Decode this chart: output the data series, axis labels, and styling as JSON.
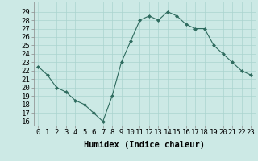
{
  "x": [
    0,
    1,
    2,
    3,
    4,
    5,
    6,
    7,
    8,
    9,
    10,
    11,
    12,
    13,
    14,
    15,
    16,
    17,
    18,
    19,
    20,
    21,
    22,
    23
  ],
  "y": [
    22.5,
    21.5,
    20.0,
    19.5,
    18.5,
    18.0,
    17.0,
    16.0,
    19.0,
    23.0,
    25.5,
    28.0,
    28.5,
    28.0,
    29.0,
    28.5,
    27.5,
    27.0,
    27.0,
    25.0,
    24.0,
    23.0,
    22.0,
    21.5
  ],
  "line_color": "#2e6b5e",
  "marker_color": "#2e6b5e",
  "bg_color": "#cce9e5",
  "grid_color": "#aad4cf",
  "xlabel": "Humidex (Indice chaleur)",
  "xlabel_fontsize": 7.5,
  "tick_fontsize": 6.5,
  "ylim": [
    15.5,
    30.2
  ],
  "xlim": [
    -0.5,
    23.5
  ],
  "yticks": [
    16,
    17,
    18,
    19,
    20,
    21,
    22,
    23,
    24,
    25,
    26,
    27,
    28,
    29
  ],
  "xticks": [
    0,
    1,
    2,
    3,
    4,
    5,
    6,
    7,
    8,
    9,
    10,
    11,
    12,
    13,
    14,
    15,
    16,
    17,
    18,
    19,
    20,
    21,
    22,
    23
  ]
}
